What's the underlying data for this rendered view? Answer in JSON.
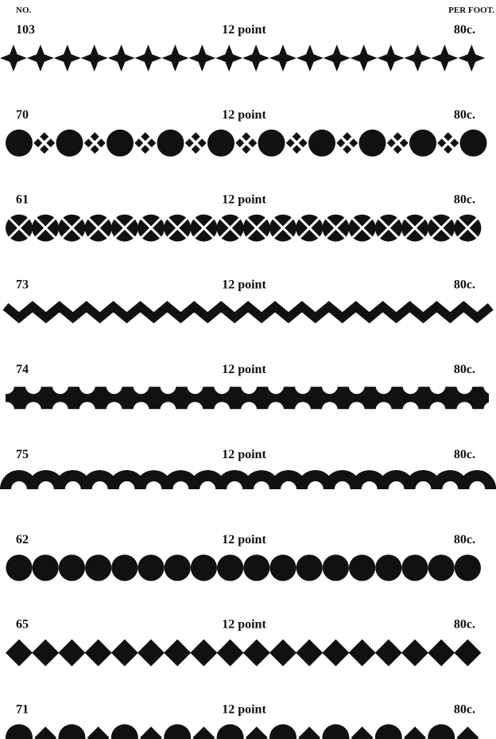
{
  "header": {
    "number_label": "NO.",
    "price_label": "PER FOOT."
  },
  "rows": [
    {
      "number": "103",
      "size": "12 point",
      "price": "80c."
    },
    {
      "number": "70",
      "size": "12 point",
      "price": "80c."
    },
    {
      "number": "61",
      "size": "12 point",
      "price": "80c."
    },
    {
      "number": "73",
      "size": "12 point",
      "price": "80c."
    },
    {
      "number": "74",
      "size": "12 point",
      "price": "80c."
    },
    {
      "number": "75",
      "size": "12 point",
      "price": "80c."
    },
    {
      "number": "62",
      "size": "12 point",
      "price": "80c."
    },
    {
      "number": "65",
      "size": "12 point",
      "price": "80c."
    },
    {
      "number": "71",
      "size": "12 point",
      "price": "80c."
    }
  ]
}
